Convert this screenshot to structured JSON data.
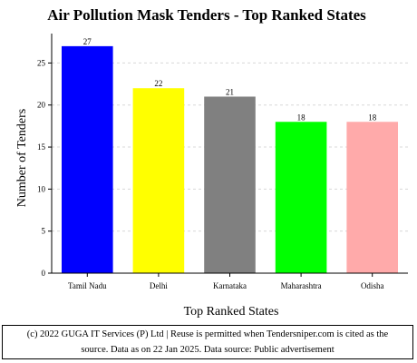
{
  "chart_data": {
    "type": "bar",
    "title": "Air Pollution Mask Tenders - Top Ranked States",
    "xlabel": "Top Ranked States",
    "ylabel": "Number of Tenders",
    "categories": [
      "Tamil Nadu",
      "Delhi",
      "Karnataka",
      "Maharashtra",
      "Odisha"
    ],
    "values": [
      27,
      22,
      21,
      18,
      18
    ],
    "data_labels": [
      "27",
      "22",
      "21",
      "18",
      "18"
    ],
    "colors": [
      "#0000ff",
      "#ffff00",
      "#808080",
      "#00ff00",
      "#ffaaaa"
    ],
    "ylim": [
      0,
      28.5
    ],
    "yticks": [
      0,
      5,
      10,
      15,
      20,
      25
    ],
    "grid": true,
    "legend": "none"
  },
  "footer": {
    "line1": "(c) 2022 GUGA IT Services (P) Ltd | Reuse is permitted when Tendersniper.com is cited as the",
    "line2": "source. Data as on 22 Jan 2025. Data source: Public advertisement"
  }
}
